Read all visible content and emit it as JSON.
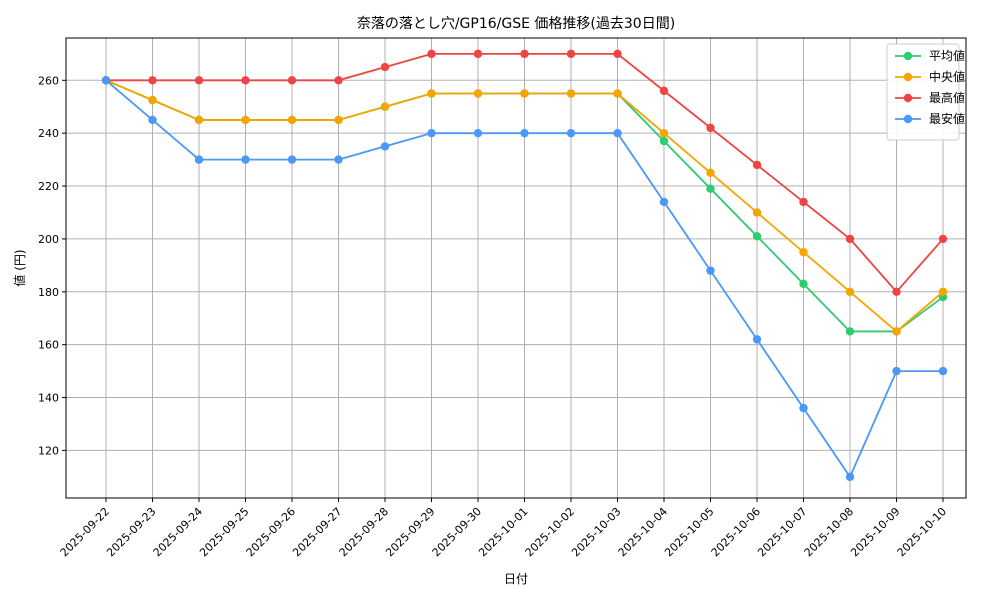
{
  "chart_data": {
    "type": "line",
    "title": "奈落の落とし穴/GP16/GSE 価格推移(過去30日間)",
    "xlabel": "日付",
    "ylabel": "値 (円)",
    "categories": [
      "2025-09-22",
      "2025-09-23",
      "2025-09-24",
      "2025-09-25",
      "2025-09-26",
      "2025-09-27",
      "2025-09-28",
      "2025-09-29",
      "2025-09-30",
      "2025-10-01",
      "2025-10-02",
      "2025-10-03",
      "2025-10-04",
      "2025-10-05",
      "2025-10-06",
      "2025-10-07",
      "2025-10-08",
      "2025-10-09",
      "2025-10-10"
    ],
    "ylim": [
      102,
      276
    ],
    "yticks": [
      120,
      140,
      160,
      180,
      200,
      220,
      240,
      260
    ],
    "grid": true,
    "legend_position": "top-right",
    "series": [
      {
        "name": "平均値",
        "color": "#2ecc71",
        "values": [
          260,
          252.5,
          245,
          245,
          245,
          245,
          250,
          255,
          255,
          255,
          255,
          255,
          237,
          219,
          201,
          183,
          165,
          165,
          178
        ]
      },
      {
        "name": "中央値",
        "color": "#f5a500",
        "values": [
          260,
          252.5,
          245,
          245,
          245,
          245,
          250,
          255,
          255,
          255,
          255,
          255,
          240,
          225,
          210,
          195,
          180,
          165,
          180
        ]
      },
      {
        "name": "最高値",
        "color": "#ef4444",
        "values": [
          260,
          260,
          260,
          260,
          260,
          260,
          265,
          270,
          270,
          270,
          270,
          270,
          256,
          242,
          228,
          214,
          200,
          180,
          200
        ]
      },
      {
        "name": "最安値",
        "color": "#4a98f7",
        "values": [
          260,
          245,
          230,
          230,
          230,
          230,
          235,
          240,
          240,
          240,
          240,
          240,
          214,
          188,
          162,
          136,
          110,
          150,
          150
        ]
      }
    ]
  }
}
